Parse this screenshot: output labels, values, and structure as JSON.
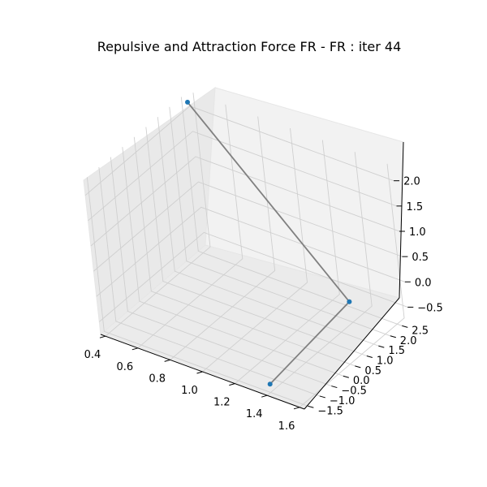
{
  "chart_data": {
    "type": "scatter3d-graph",
    "title": "Repulsive and Attraction Force FR - FR : iter 44",
    "x_axis": {
      "ticks": [
        "0.4",
        "0.6",
        "0.8",
        "1.0",
        "1.2",
        "1.4",
        "1.6"
      ],
      "range": [
        0.37,
        1.63
      ]
    },
    "y_axis": {
      "ticks": [
        "−1.5",
        "−1.0",
        "−0.5",
        "0.0",
        "0.5",
        "1.0",
        "1.5",
        "2.0",
        "2.5"
      ],
      "range": [
        -1.65,
        2.8
      ]
    },
    "z_axis": {
      "ticks": [
        "−0.5",
        "0.0",
        "0.5",
        "1.0",
        "1.5",
        "2.0"
      ],
      "range": [
        -0.75,
        2.3
      ]
    },
    "grid": true,
    "nodes": [
      {
        "id": 0,
        "x": 0.39,
        "y": 2.6,
        "z": 2.18
      },
      {
        "id": 1,
        "x": 1.51,
        "y": 1.28,
        "z": 0.07
      },
      {
        "id": 2,
        "x": 1.38,
        "y": -1.37,
        "z": -0.66
      }
    ],
    "edges": [
      [
        0,
        1
      ],
      [
        1,
        2
      ]
    ],
    "node_color": "#1f77b4",
    "edge_color": "#808080"
  }
}
